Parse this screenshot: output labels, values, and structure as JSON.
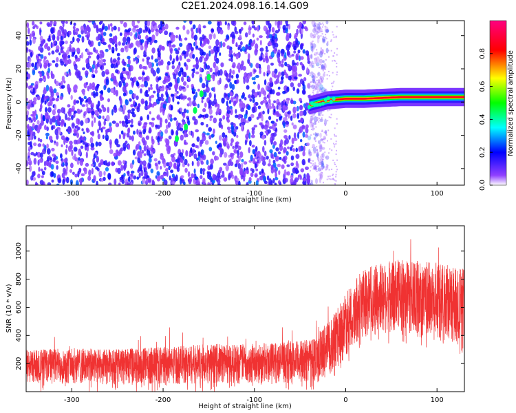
{
  "title": "C2E1.2024.098.16.14.G09",
  "chart_data": [
    {
      "type": "heatmap",
      "xlabel": "Height of straight line (km)",
      "ylabel": "Frequency (Hz)",
      "xlim": [
        -350,
        130
      ],
      "ylim": [
        -50,
        49
      ],
      "xticks": [
        "-300",
        "-200",
        "-100",
        "0",
        "100"
      ],
      "yticks": [
        "-40",
        "-20",
        "0",
        "20",
        "40"
      ],
      "colorbar": {
        "label": "Normalized spectral amplitude",
        "range": [
          0,
          1
        ],
        "ticks": [
          "0.0",
          "0.2",
          "0.4",
          "0.6",
          "0.8"
        ],
        "colors": [
          "#ffffff",
          "#8000ff",
          "#0000ff",
          "#00ffff",
          "#00ff00",
          "#ffff00",
          "#ff0000",
          "#ff0080"
        ]
      },
      "features": [
        {
          "name": "noise",
          "x_range": [
            -350,
            -40
          ],
          "y_range": [
            -50,
            49
          ],
          "amplitude": 0.25
        },
        {
          "name": "signal track",
          "x": [
            -40,
            -20,
            0,
            20,
            40,
            60,
            80,
            100,
            130
          ],
          "y": [
            -2,
            1,
            2,
            2,
            2.5,
            3,
            3,
            3,
            3
          ],
          "amplitude": 0.9
        },
        {
          "name": "diagonal streak",
          "x": [
            -185,
            -175,
            -165,
            -158,
            -150
          ],
          "y": [
            -22,
            -15,
            -5,
            5,
            15
          ],
          "amplitude": 0.45
        }
      ]
    },
    {
      "type": "area",
      "xlabel": "Height of straight line (km)",
      "ylabel": "SNR (10 * v/v)",
      "xlim": [
        -350,
        130
      ],
      "ylim": [
        0,
        1180
      ],
      "xticks": [
        "-300",
        "-200",
        "-100",
        "0",
        "100"
      ],
      "yticks": [
        "200",
        "400",
        "600",
        "800",
        "1000"
      ],
      "color": "#f03232",
      "envelope": {
        "x": [
          -350,
          -300,
          -250,
          -200,
          -150,
          -100,
          -50,
          -30,
          -10,
          0,
          20,
          40,
          60,
          80,
          100,
          130
        ],
        "low": [
          60,
          55,
          50,
          50,
          55,
          60,
          60,
          70,
          150,
          250,
          380,
          400,
          400,
          380,
          350,
          320
        ],
        "high": [
          300,
          310,
          300,
          320,
          340,
          340,
          360,
          420,
          580,
          700,
          880,
          920,
          940,
          930,
          920,
          880
        ]
      }
    }
  ]
}
